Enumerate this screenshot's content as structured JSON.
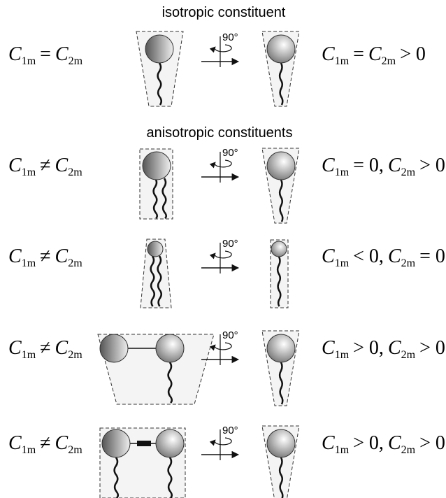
{
  "headings": [
    "isotropic constituent",
    "anisotropic constituents"
  ],
  "rows": [
    {
      "left": [
        "C",
        "1m",
        "=",
        "C",
        "2m"
      ],
      "angle": "90°",
      "right": [
        "C",
        "1m",
        "=",
        "C",
        "2m",
        "> 0"
      ]
    },
    {
      "left": [
        "C",
        "1m",
        "≠",
        "C",
        "2m"
      ],
      "angle": "90°",
      "right": [
        "C",
        "1m",
        "= 0,",
        "C",
        "2m",
        "> 0"
      ]
    },
    {
      "left": [
        "C",
        "1m",
        "≠",
        "C",
        "2m"
      ],
      "angle": "90°",
      "right": [
        "C",
        "1m",
        "< 0,",
        "C",
        "2m",
        "= 0"
      ]
    },
    {
      "left": [
        "C",
        "1m",
        "≠",
        "C",
        "2m"
      ],
      "angle": "90°",
      "right": [
        "C",
        "1m",
        "> 0,",
        "C",
        "2m",
        "> 0"
      ]
    },
    {
      "left": [
        "C",
        "1m",
        "≠",
        "C",
        "2m"
      ],
      "angle": "90°",
      "right": [
        "C",
        "1m",
        "> 0,",
        "C",
        "2m",
        "> 0"
      ]
    }
  ]
}
